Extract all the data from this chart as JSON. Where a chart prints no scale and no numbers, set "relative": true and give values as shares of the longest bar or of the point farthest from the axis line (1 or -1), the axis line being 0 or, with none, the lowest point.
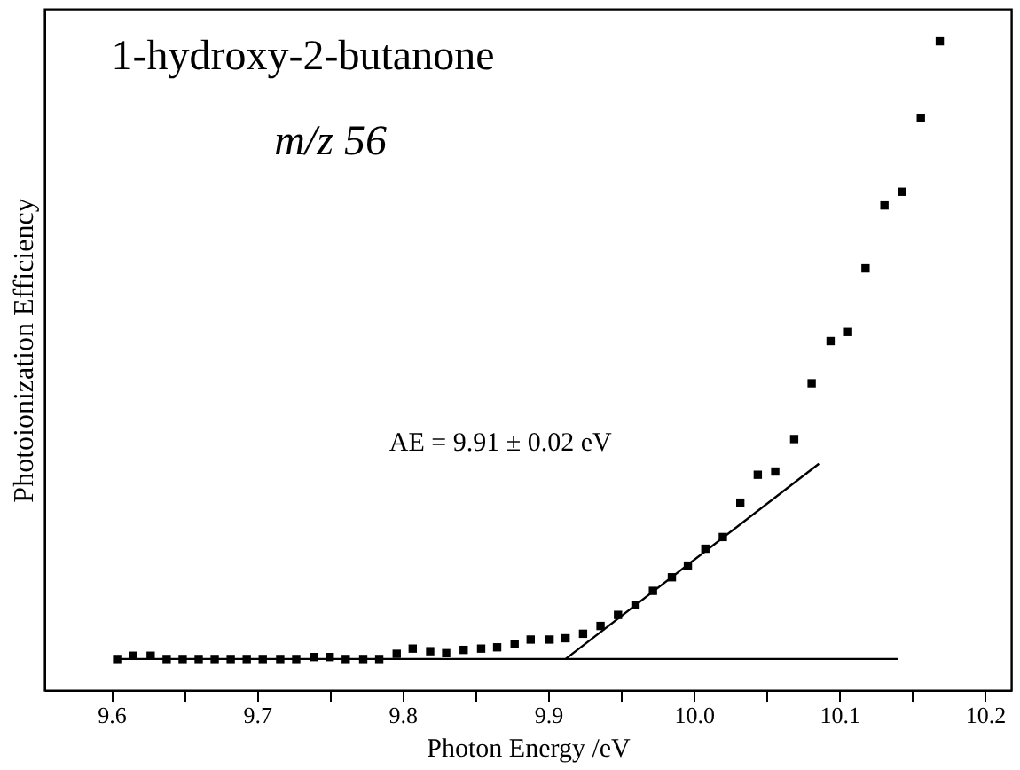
{
  "chart_data": {
    "type": "scatter",
    "relative": true,
    "xlabel": "Photon Energy /eV",
    "ylabel": "Photoionization Efficiency",
    "xlim": [
      9.554,
      10.218
    ],
    "xticks": [
      9.6,
      {
        "value": 9.65,
        "label": null
      },
      9.7,
      {
        "value": 9.75,
        "label": null
      },
      9.8,
      {
        "value": 9.85,
        "label": null
      },
      9.9,
      {
        "value": 9.95,
        "label": null
      },
      {
        "value": 10,
        "label": "10.0"
      },
      {
        "value": 10.05,
        "label": null
      },
      10.1,
      {
        "value": 10.15,
        "label": null
      },
      10.2
    ],
    "tick_labels": "x",
    "grid": false,
    "annotations": [
      "1-hydroxy-2-butanone",
      "m/z 56",
      "AE = 9.91 ± 0.02 eV"
    ],
    "series": [
      {
        "type": "scatter",
        "marker": "square",
        "color": "#000000",
        "x": [
          9.604,
          9.615,
          9.627,
          9.638,
          9.649,
          9.66,
          9.671,
          9.682,
          9.693,
          9.704,
          9.716,
          9.727,
          9.739,
          9.75,
          9.761,
          9.773,
          9.784,
          9.796,
          9.807,
          9.819,
          9.83,
          9.842,
          9.854,
          9.865,
          9.877,
          9.888,
          9.901,
          9.912,
          9.924,
          9.936,
          9.948,
          9.96,
          9.972,
          9.985,
          9.996,
          10.008,
          10.02,
          10.032,
          10.044,
          10.056,
          10.069,
          10.081,
          10.094,
          10.106,
          10.118,
          10.131,
          10.143,
          10.156,
          10.169
        ],
        "values": [
          0.048,
          0.053,
          0.053,
          0.048,
          0.048,
          0.048,
          0.048,
          0.048,
          0.048,
          0.048,
          0.048,
          0.048,
          0.051,
          0.051,
          0.048,
          0.048,
          0.048,
          0.056,
          0.064,
          0.06,
          0.057,
          0.062,
          0.064,
          0.066,
          0.071,
          0.078,
          0.078,
          0.08,
          0.087,
          0.099,
          0.116,
          0.131,
          0.153,
          0.174,
          0.192,
          0.218,
          0.236,
          0.289,
          0.332,
          0.337,
          0.387,
          0.473,
          0.538,
          0.552,
          0.65,
          0.747,
          0.768,
          0.882,
          1.0
        ]
      },
      {
        "type": "line",
        "color": "#000000",
        "x": [
          9.604,
          10.14
        ],
        "values": [
          0.048,
          0.048
        ]
      },
      {
        "type": "line",
        "color": "#000000",
        "x": [
          9.912,
          10.086
        ],
        "values": [
          0.048,
          0.349
        ]
      }
    ]
  }
}
